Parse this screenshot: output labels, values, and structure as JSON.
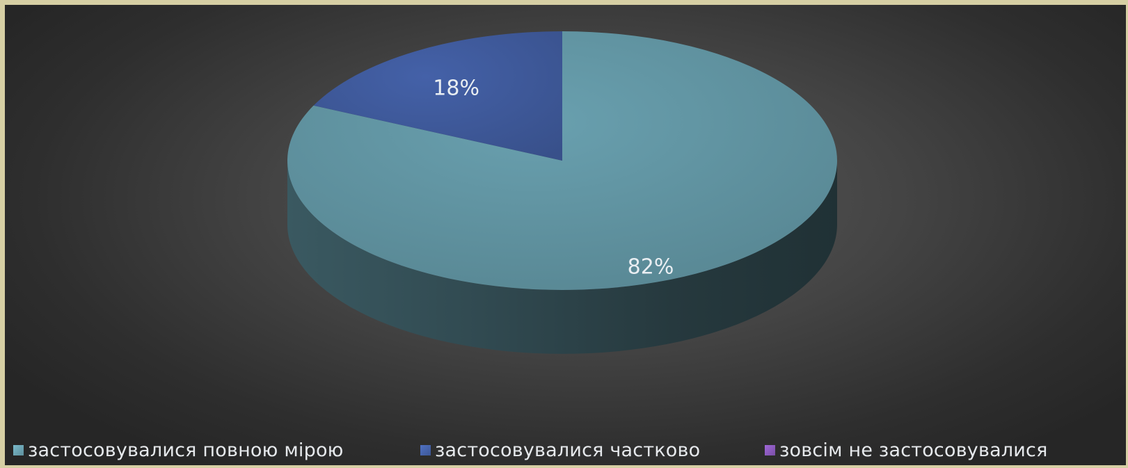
{
  "chart_data": {
    "type": "pie",
    "style": "3d",
    "title": "",
    "slices": [
      {
        "label": "застосовувалися повною мірою",
        "value": 82,
        "value_label": "82%",
        "color": "#5e8f9c"
      },
      {
        "label": "застосовувалися частково",
        "value": 18,
        "value_label": "18%",
        "color": "#3d5796"
      },
      {
        "label": "зовсім не застосовувалися",
        "value": 0,
        "value_label": "",
        "color": "#7a4fa6"
      }
    ],
    "legend_position": "bottom"
  }
}
